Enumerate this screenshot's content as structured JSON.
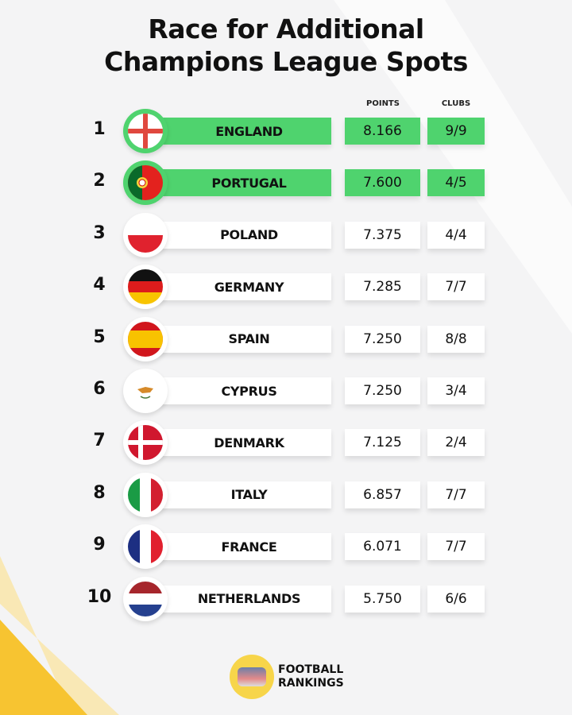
{
  "title_line1": "Race for Additional",
  "title_line2": "Champions League Spots",
  "headers": {
    "points": "POINTS",
    "clubs": "CLUBS"
  },
  "highlight_color": "#4fd36e",
  "rows": [
    {
      "rank": "1",
      "country": "ENGLAND",
      "points": "8.166",
      "clubs": "9/9",
      "flag": "england",
      "highlight": true
    },
    {
      "rank": "2",
      "country": "PORTUGAL",
      "points": "7.600",
      "clubs": "4/5",
      "flag": "portugal",
      "highlight": true
    },
    {
      "rank": "3",
      "country": "POLAND",
      "points": "7.375",
      "clubs": "4/4",
      "flag": "poland",
      "highlight": false
    },
    {
      "rank": "4",
      "country": "GERMANY",
      "points": "7.285",
      "clubs": "7/7",
      "flag": "germany",
      "highlight": false
    },
    {
      "rank": "5",
      "country": "SPAIN",
      "points": "7.250",
      "clubs": "8/8",
      "flag": "spain",
      "highlight": false
    },
    {
      "rank": "6",
      "country": "CYPRUS",
      "points": "7.250",
      "clubs": "3/4",
      "flag": "cyprus",
      "highlight": false
    },
    {
      "rank": "7",
      "country": "DENMARK",
      "points": "7.125",
      "clubs": "2/4",
      "flag": "denmark",
      "highlight": false
    },
    {
      "rank": "8",
      "country": "ITALY",
      "points": "6.857",
      "clubs": "7/7",
      "flag": "italy",
      "highlight": false
    },
    {
      "rank": "9",
      "country": "FRANCE",
      "points": "6.071",
      "clubs": "7/7",
      "flag": "france",
      "highlight": false
    },
    {
      "rank": "10",
      "country": "NETHERLANDS",
      "points": "5.750",
      "clubs": "6/6",
      "flag": "netherlands",
      "highlight": false
    }
  ],
  "brand": {
    "line1": "FOOTBALL",
    "line2": "RANKINGS"
  }
}
